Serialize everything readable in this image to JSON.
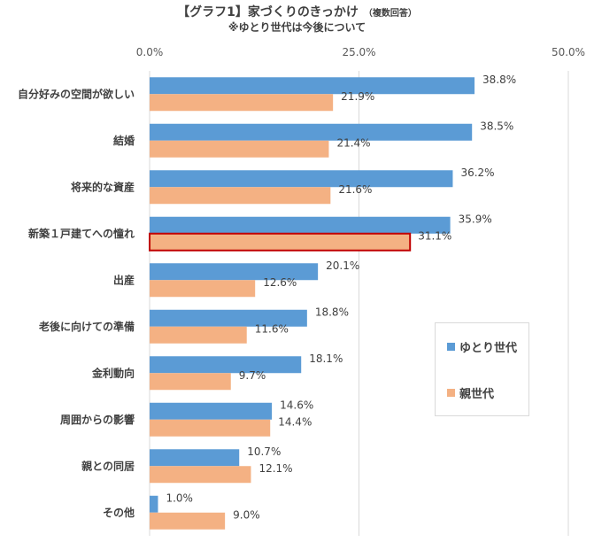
{
  "title": "【グラフ1】家づくりのきっかけ",
  "title_note": "（複数回答）",
  "subtitle": "※ゆとり世代は今後について",
  "chart_data": {
    "type": "bar",
    "orientation": "horizontal",
    "categories": [
      "自分好みの空間が欲しい",
      "結婚",
      "将来的な資産",
      "新築１戸建てへの憧れ",
      "出産",
      "老後に向けての準備",
      "金利動向",
      "周囲からの影響",
      "親との同居",
      "その他"
    ],
    "series": [
      {
        "name": "ゆとり世代",
        "color": "#5b9bd5",
        "values": [
          38.8,
          38.5,
          36.2,
          35.9,
          20.1,
          18.8,
          18.1,
          14.6,
          10.7,
          1.0
        ]
      },
      {
        "name": "親世代",
        "color": "#f4b183",
        "values": [
          21.9,
          21.4,
          21.6,
          31.1,
          12.6,
          11.6,
          9.7,
          14.4,
          12.1,
          9.0
        ]
      }
    ],
    "xlim": [
      0,
      50
    ],
    "ticks": [
      "0.0%",
      "25.0%",
      "50.0%"
    ],
    "value_format": "percent_1dp",
    "grid": true,
    "legend_position": "right",
    "highlight": {
      "category": "新築１戸建てへの憧れ",
      "series": "親世代",
      "outline_color": "#c00000"
    }
  }
}
